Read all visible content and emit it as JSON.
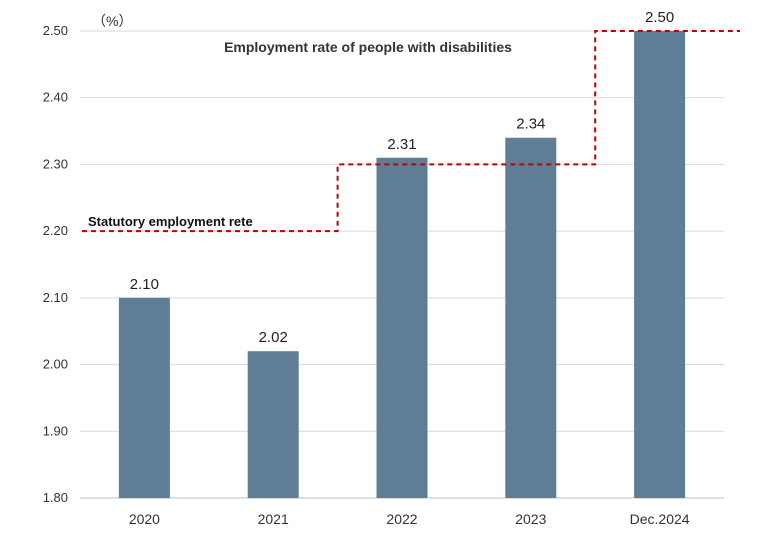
{
  "chart_data": {
    "type": "bar",
    "title": "Employment rate of people with disabilities",
    "unit_label": "（%）",
    "categories": [
      "2020",
      "2021",
      "2022",
      "2023",
      "Dec.2024"
    ],
    "values": [
      2.1,
      2.02,
      2.31,
      2.34,
      2.5
    ],
    "value_labels": [
      "2.10",
      "2.02",
      "2.31",
      "2.34",
      "2.50"
    ],
    "ylim": [
      1.8,
      2.5
    ],
    "yticks": [
      "1.80",
      "1.90",
      "2.00",
      "2.10",
      "2.20",
      "2.30",
      "2.40",
      "2.50"
    ],
    "ytick_values": [
      1.8,
      1.9,
      2.0,
      2.1,
      2.2,
      2.3,
      2.4,
      2.5
    ],
    "grid": true,
    "bar_color": "#5f7d95",
    "statutory_rate": {
      "label": "Statutory employment rete",
      "steps": [
        {
          "from_category": 0,
          "to_category": 1,
          "value": 2.2
        },
        {
          "from_category": 2,
          "to_category": 3,
          "value": 2.3
        },
        {
          "from_category": 4,
          "to_category": 4,
          "value": 2.5
        }
      ],
      "color": "#c00000"
    }
  }
}
